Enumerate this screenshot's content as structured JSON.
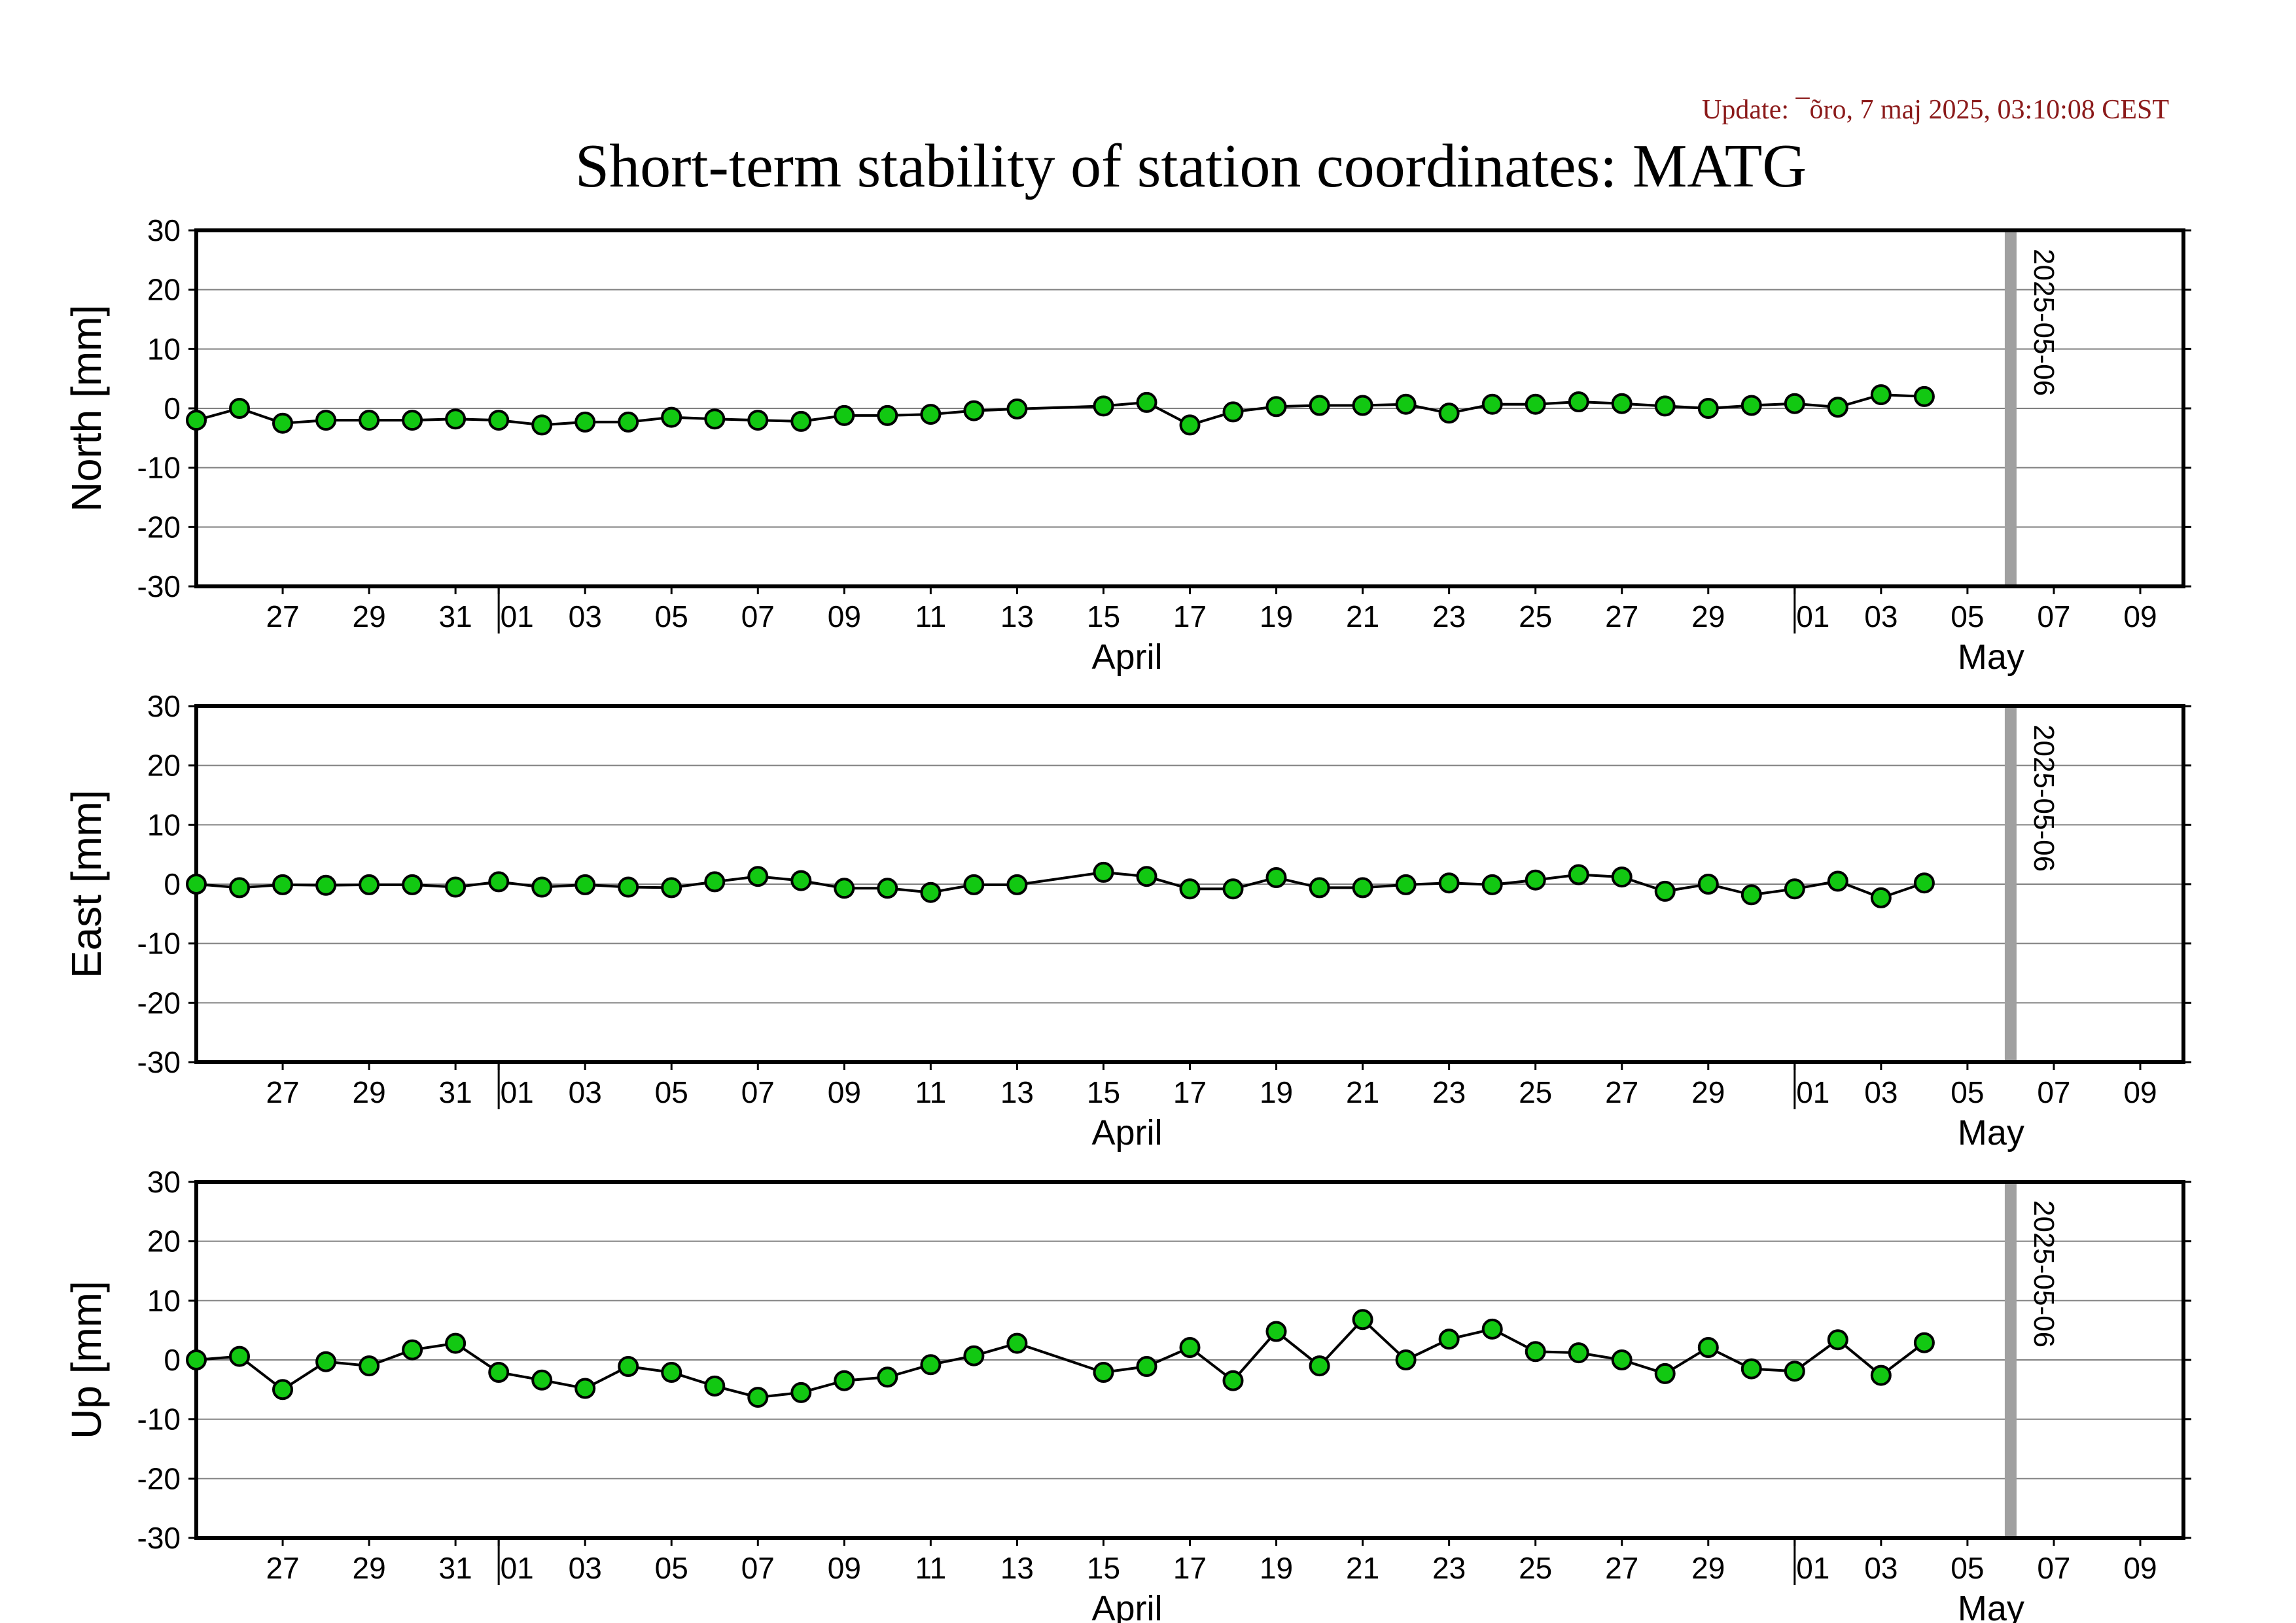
{
  "update": "Update: ¯õro, 7 maj 2025, 03:10:08 CEST",
  "title": "Short-term stability of station coordinates: MATG",
  "colors": {
    "marker_fill": "#12c812",
    "marker_stroke": "#000000",
    "line": "#000000",
    "grid": "#808080",
    "current_date_bar": "#a0a0a0",
    "update_text": "#8b1a1a"
  },
  "chart_data": [
    {
      "type": "line",
      "ylabel": "North [mm]",
      "ylim": [
        -30,
        30
      ],
      "yticks": [
        30,
        20,
        10,
        0,
        -10,
        -20,
        -30
      ],
      "grid": true,
      "x_range": [
        "2025-03-25",
        "2025-05-10"
      ],
      "x_tick_labels": [
        "27",
        "29",
        "31",
        "01",
        "03",
        "05",
        "07",
        "09",
        "11",
        "13",
        "15",
        "17",
        "19",
        "21",
        "23",
        "25",
        "27",
        "29",
        "01",
        "03",
        "05",
        "07",
        "09"
      ],
      "x_tick_dates": [
        "2025-03-27",
        "2025-03-29",
        "2025-03-31",
        "2025-04-01",
        "2025-04-03",
        "2025-04-05",
        "2025-04-07",
        "2025-04-09",
        "2025-04-11",
        "2025-04-13",
        "2025-04-15",
        "2025-04-17",
        "2025-04-19",
        "2025-04-21",
        "2025-04-23",
        "2025-04-25",
        "2025-04-27",
        "2025-04-29",
        "2025-05-01",
        "2025-05-03",
        "2025-05-05",
        "2025-05-07",
        "2025-05-09"
      ],
      "month_labels": [
        {
          "label": "April",
          "date": "2025-04-15"
        },
        {
          "label": "May",
          "date": "2025-05-05"
        }
      ],
      "month_boundaries": [
        "2025-04-01",
        "2025-05-01"
      ],
      "current_date": "2025-05-06",
      "series": [
        {
          "x": [
            "2025-03-25",
            "2025-03-26",
            "2025-03-27",
            "2025-03-28",
            "2025-03-29",
            "2025-03-30",
            "2025-03-31",
            "2025-04-01",
            "2025-04-02",
            "2025-04-03",
            "2025-04-04",
            "2025-04-05",
            "2025-04-06",
            "2025-04-07",
            "2025-04-08",
            "2025-04-09",
            "2025-04-10",
            "2025-04-11",
            "2025-04-12",
            "2025-04-13",
            "2025-04-15",
            "2025-04-16",
            "2025-04-17",
            "2025-04-18",
            "2025-04-19",
            "2025-04-20",
            "2025-04-21",
            "2025-04-22",
            "2025-04-23",
            "2025-04-24",
            "2025-04-25",
            "2025-04-26",
            "2025-04-27",
            "2025-04-28",
            "2025-04-29",
            "2025-04-30",
            "2025-05-01",
            "2025-05-02",
            "2025-05-03",
            "2025-05-04"
          ],
          "y": [
            -2,
            0,
            -2.5,
            -2,
            -2,
            -2,
            -1.8,
            -2,
            -2.8,
            -2.3,
            -2.3,
            -1.5,
            -1.8,
            -2,
            -2.2,
            -1.2,
            -1.2,
            -1,
            -0.4,
            -0.1,
            0.4,
            1,
            -2.8,
            -0.6,
            0.3,
            0.5,
            0.5,
            0.7,
            -0.8,
            0.7,
            0.7,
            1.1,
            0.8,
            0.4,
            0,
            0.5,
            0.8,
            0.2,
            2.3,
            2
          ]
        }
      ]
    },
    {
      "type": "line",
      "ylabel": "East [mm]",
      "ylim": [
        -30,
        30
      ],
      "yticks": [
        30,
        20,
        10,
        0,
        -10,
        -20,
        -30
      ],
      "grid": true,
      "x_range": [
        "2025-03-25",
        "2025-05-10"
      ],
      "x_tick_labels": [
        "27",
        "29",
        "31",
        "01",
        "03",
        "05",
        "07",
        "09",
        "11",
        "13",
        "15",
        "17",
        "19",
        "21",
        "23",
        "25",
        "27",
        "29",
        "01",
        "03",
        "05",
        "07",
        "09"
      ],
      "x_tick_dates": [
        "2025-03-27",
        "2025-03-29",
        "2025-03-31",
        "2025-04-01",
        "2025-04-03",
        "2025-04-05",
        "2025-04-07",
        "2025-04-09",
        "2025-04-11",
        "2025-04-13",
        "2025-04-15",
        "2025-04-17",
        "2025-04-19",
        "2025-04-21",
        "2025-04-23",
        "2025-04-25",
        "2025-04-27",
        "2025-04-29",
        "2025-05-01",
        "2025-05-03",
        "2025-05-05",
        "2025-05-07",
        "2025-05-09"
      ],
      "month_labels": [
        {
          "label": "April",
          "date": "2025-04-15"
        },
        {
          "label": "May",
          "date": "2025-05-05"
        }
      ],
      "month_boundaries": [
        "2025-04-01",
        "2025-05-01"
      ],
      "current_date": "2025-05-06",
      "series": [
        {
          "x": [
            "2025-03-25",
            "2025-03-26",
            "2025-03-27",
            "2025-03-28",
            "2025-03-29",
            "2025-03-30",
            "2025-03-31",
            "2025-04-01",
            "2025-04-02",
            "2025-04-03",
            "2025-04-04",
            "2025-04-05",
            "2025-04-06",
            "2025-04-07",
            "2025-04-08",
            "2025-04-09",
            "2025-04-10",
            "2025-04-11",
            "2025-04-12",
            "2025-04-13",
            "2025-04-15",
            "2025-04-16",
            "2025-04-17",
            "2025-04-18",
            "2025-04-19",
            "2025-04-20",
            "2025-04-21",
            "2025-04-22",
            "2025-04-23",
            "2025-04-24",
            "2025-04-25",
            "2025-04-26",
            "2025-04-27",
            "2025-04-28",
            "2025-04-29",
            "2025-04-30",
            "2025-05-01",
            "2025-05-02",
            "2025-05-03",
            "2025-05-04"
          ],
          "y": [
            0,
            -0.6,
            -0.1,
            -0.2,
            -0.1,
            -0.1,
            -0.5,
            0.4,
            -0.5,
            -0.1,
            -0.5,
            -0.6,
            0.4,
            1.3,
            0.6,
            -0.7,
            -0.7,
            -1.4,
            -0.1,
            -0.1,
            2,
            1.3,
            -0.8,
            -0.8,
            1.1,
            -0.6,
            -0.6,
            -0.1,
            0.2,
            -0.1,
            0.7,
            1.6,
            1.2,
            -1.2,
            0,
            -1.8,
            -0.8,
            0.5,
            -2.3,
            0.2
          ]
        }
      ]
    },
    {
      "type": "line",
      "ylabel": "Up [mm]",
      "ylim": [
        -30,
        30
      ],
      "yticks": [
        30,
        20,
        10,
        0,
        -10,
        -20,
        -30
      ],
      "grid": true,
      "x_range": [
        "2025-03-25",
        "2025-05-10"
      ],
      "x_tick_labels": [
        "27",
        "29",
        "31",
        "01",
        "03",
        "05",
        "07",
        "09",
        "11",
        "13",
        "15",
        "17",
        "19",
        "21",
        "23",
        "25",
        "27",
        "29",
        "01",
        "03",
        "05",
        "07",
        "09"
      ],
      "x_tick_dates": [
        "2025-03-27",
        "2025-03-29",
        "2025-03-31",
        "2025-04-01",
        "2025-04-03",
        "2025-04-05",
        "2025-04-07",
        "2025-04-09",
        "2025-04-11",
        "2025-04-13",
        "2025-04-15",
        "2025-04-17",
        "2025-04-19",
        "2025-04-21",
        "2025-04-23",
        "2025-04-25",
        "2025-04-27",
        "2025-04-29",
        "2025-05-01",
        "2025-05-03",
        "2025-05-05",
        "2025-05-07",
        "2025-05-09"
      ],
      "month_labels": [
        {
          "label": "April",
          "date": "2025-04-15"
        },
        {
          "label": "May",
          "date": "2025-05-05"
        }
      ],
      "month_boundaries": [
        "2025-04-01",
        "2025-05-01"
      ],
      "current_date": "2025-05-06",
      "series": [
        {
          "x": [
            "2025-03-25",
            "2025-03-26",
            "2025-03-27",
            "2025-03-28",
            "2025-03-29",
            "2025-03-30",
            "2025-03-31",
            "2025-04-01",
            "2025-04-02",
            "2025-04-03",
            "2025-04-04",
            "2025-04-05",
            "2025-04-06",
            "2025-04-07",
            "2025-04-08",
            "2025-04-09",
            "2025-04-10",
            "2025-04-11",
            "2025-04-12",
            "2025-04-13",
            "2025-04-15",
            "2025-04-16",
            "2025-04-17",
            "2025-04-18",
            "2025-04-19",
            "2025-04-20",
            "2025-04-21",
            "2025-04-22",
            "2025-04-23",
            "2025-04-24",
            "2025-04-25",
            "2025-04-26",
            "2025-04-27",
            "2025-04-28",
            "2025-04-29",
            "2025-04-30",
            "2025-05-01",
            "2025-05-02",
            "2025-05-03",
            "2025-05-04"
          ],
          "y": [
            0,
            0.6,
            -5,
            -0.3,
            -1,
            1.7,
            2.8,
            -2.1,
            -3.4,
            -4.8,
            -1.1,
            -2.1,
            -4.4,
            -6.3,
            -5.5,
            -3.5,
            -2.9,
            -0.8,
            0.7,
            2.8,
            -2.1,
            -1.1,
            2.1,
            -3.5,
            4.8,
            -1,
            6.8,
            0,
            3.5,
            5.2,
            1.4,
            1.2,
            0,
            -2.3,
            2.1,
            -1.5,
            -1.9,
            3.4,
            -2.6,
            2.9
          ]
        }
      ]
    }
  ]
}
